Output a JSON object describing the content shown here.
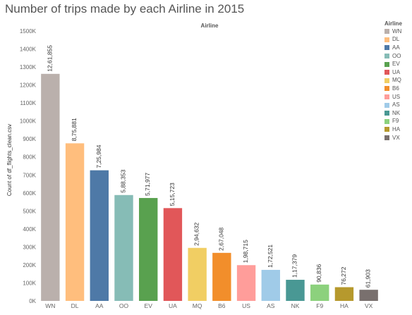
{
  "chart_data": {
    "type": "bar",
    "title": "Number of trips made by each Airline in 2015",
    "column_header": "Airline",
    "ylabel": "Count of df_flights_clean.csv",
    "xlabel": "",
    "categories": [
      "WN",
      "DL",
      "AA",
      "OO",
      "EV",
      "UA",
      "MQ",
      "B6",
      "US",
      "AS",
      "NK",
      "F9",
      "HA",
      "VX"
    ],
    "values": [
      1261855,
      875881,
      725984,
      588353,
      571977,
      515723,
      294632,
      267048,
      198715,
      172521,
      117379,
      90836,
      76272,
      61903
    ],
    "data_labels": [
      "12,61,855",
      "8,75,881",
      "7,25,984",
      "5,88,353",
      "5,71,977",
      "5,15,723",
      "2,94,632",
      "2,67,048",
      "1,98,715",
      "1,72,521",
      "1,17,379",
      "90,836",
      "76,272",
      "61,903"
    ],
    "colors": [
      "#BAB0AC",
      "#FFBE7D",
      "#4E79A7",
      "#86BCB6",
      "#59A14F",
      "#E15759",
      "#F1CE63",
      "#F28E2B",
      "#FF9D9A",
      "#A0CBE8",
      "#499894",
      "#8CD17D",
      "#B6992D",
      "#79706E"
    ],
    "ylim": [
      0,
      1500000
    ],
    "yticks": [
      0,
      100000,
      200000,
      300000,
      400000,
      500000,
      600000,
      700000,
      800000,
      900000,
      1000000,
      1100000,
      1200000,
      1300000,
      1400000,
      1500000
    ],
    "ytick_labels": [
      "0K",
      "100K",
      "200K",
      "300K",
      "400K",
      "500K",
      "600K",
      "700K",
      "800K",
      "900K",
      "1000K",
      "1100K",
      "1200K",
      "1300K",
      "1400K",
      "1500K"
    ],
    "grid": false,
    "legend": {
      "title": "Airline",
      "position": "right",
      "items": [
        "WN",
        "DL",
        "AA",
        "OO",
        "EV",
        "UA",
        "MQ",
        "B6",
        "US",
        "AS",
        "NK",
        "F9",
        "HA",
        "VX"
      ]
    }
  }
}
